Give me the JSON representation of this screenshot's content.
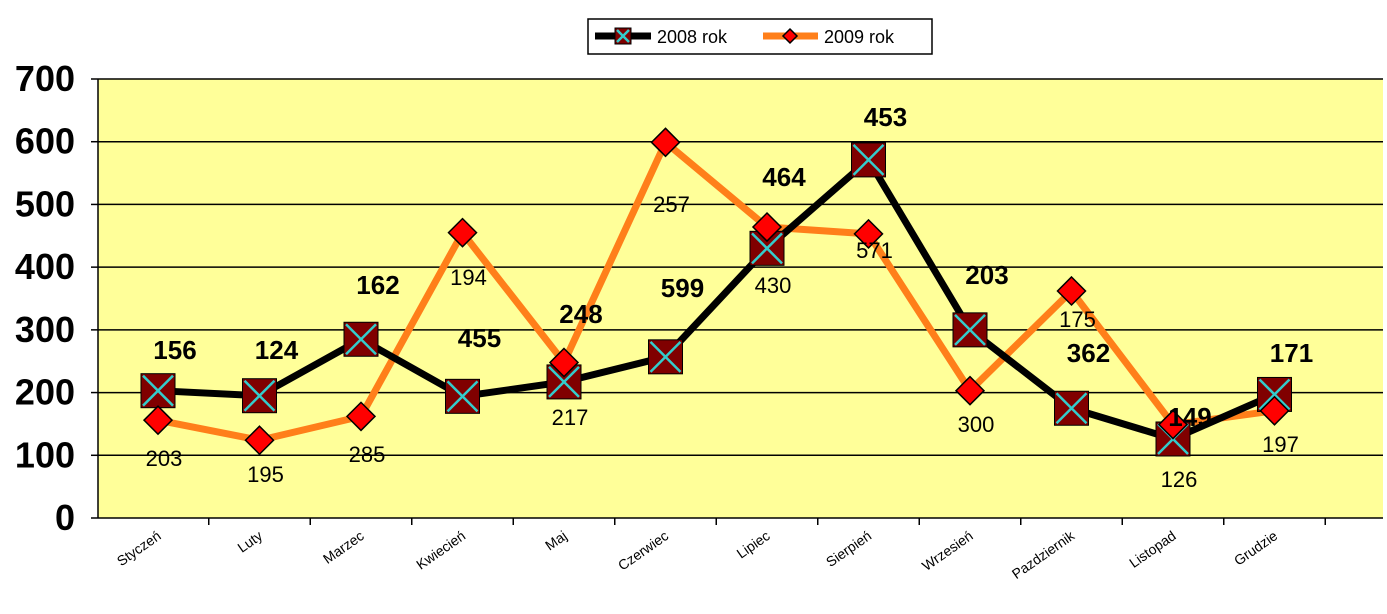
{
  "chart_data": {
    "type": "line",
    "categories": [
      "Styczeń",
      "Luty",
      "Marzec",
      "Kwiecień",
      "Maj",
      "Czerwiec",
      "Lipiec",
      "Sierpień",
      "Wrzesień",
      "Pazdziernik",
      "Listopad",
      "Grudzie"
    ],
    "series": [
      {
        "name": "2008 rok",
        "values": [
          203,
          195,
          285,
          194,
          217,
          257,
          430,
          571,
          300,
          175,
          126,
          197
        ],
        "color": "#000000",
        "marker": "x-square",
        "marker_fill": "#800000",
        "marker_cross": "#33cccc"
      },
      {
        "name": "2009 rok",
        "values": [
          156,
          124,
          162,
          455,
          248,
          599,
          464,
          453,
          203,
          362,
          149,
          171
        ],
        "color": "#ff7f1a",
        "marker": "diamond",
        "marker_fill": "#ff0000"
      }
    ],
    "ylim": [
      0,
      700
    ],
    "yticks": [
      0,
      100,
      200,
      300,
      400,
      500,
      600,
      700
    ],
    "grid": true,
    "plot_background": "#ffff99",
    "legend_position": "top-center",
    "title": "",
    "xlabel": "",
    "ylabel": ""
  }
}
